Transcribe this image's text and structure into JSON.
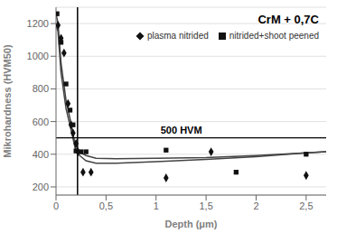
{
  "chart_data": {
    "type": "scatter",
    "title": "CrM + 0,7C",
    "xlabel": "Depth (μm)",
    "ylabel": "Mikrohardness (HVM50)",
    "xlim": [
      0,
      2.7
    ],
    "ylim": [
      150,
      1300
    ],
    "xticks": [
      0,
      {
        "value": 0.5,
        "label": "0,5"
      },
      1,
      {
        "value": 1.5,
        "label": "1,5"
      },
      2,
      {
        "value": 2.5,
        "label": "2,5"
      }
    ],
    "yticks": [
      200,
      400,
      600,
      800,
      1000,
      1200
    ],
    "grid": "y",
    "legend": "upper right",
    "series": [
      {
        "type": "line",
        "color": "#444444",
        "x": [
          0.0,
          0.02,
          0.05,
          0.1,
          0.15,
          0.2,
          0.22,
          0.25,
          0.3,
          0.4,
          0.6,
          1.0,
          1.5,
          2.0,
          2.5,
          2.7
        ],
        "values": [
          1190,
          1150,
          900,
          680,
          550,
          415,
          400,
          385,
          360,
          345,
          345,
          355,
          368,
          385,
          408,
          415
        ]
      },
      {
        "type": "line",
        "color": "#444444",
        "x": [
          0.0,
          0.02,
          0.05,
          0.1,
          0.15,
          0.2,
          0.22,
          0.25,
          0.3,
          0.4,
          0.6,
          1.0,
          1.5,
          2.0,
          2.5,
          2.7
        ],
        "values": [
          1260,
          1200,
          960,
          730,
          590,
          430,
          418,
          408,
          392,
          375,
          372,
          375,
          380,
          392,
          408,
          415
        ]
      },
      {
        "name": "plasma nitrided",
        "type": "scatter",
        "marker": "diamond",
        "color": "#111111",
        "x": [
          0.02,
          0.05,
          0.08,
          0.12,
          0.15,
          0.17,
          0.2,
          0.22,
          0.27,
          0.35,
          1.1,
          1.55,
          2.5
        ],
        "values": [
          1190,
          1110,
          1020,
          710,
          580,
          530,
          465,
          415,
          290,
          290,
          255,
          415,
          270
        ]
      },
      {
        "name": "nitrided+shoot peened",
        "type": "scatter",
        "marker": "square",
        "color": "#111111",
        "x": [
          0.01,
          0.05,
          0.1,
          0.14,
          0.17,
          0.2,
          0.25,
          0.3,
          1.1,
          1.8,
          2.5
        ],
        "values": [
          1260,
          1085,
          830,
          670,
          580,
          420,
          415,
          415,
          425,
          290,
          400
        ]
      }
    ],
    "annotations": [
      {
        "type": "vline",
        "x": 0.215,
        "color": "black"
      },
      {
        "type": "hline",
        "y": 500,
        "color": "black",
        "label": "500 HVM",
        "x": 1.0
      }
    ]
  }
}
